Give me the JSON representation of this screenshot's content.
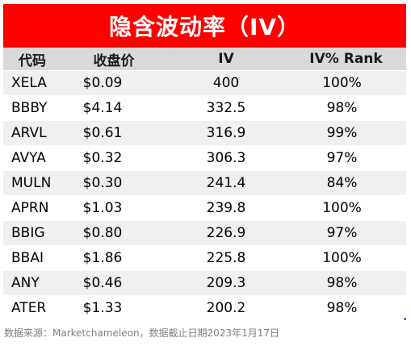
{
  "title": "隐含波动率（IV）",
  "colors": {
    "title_bg": "#ff0000",
    "header_bg": "#d9d9d9",
    "row_alt_bg": "#f0f0f0",
    "footnote_text": "#7f7f7f"
  },
  "table": {
    "headers": [
      "代码",
      "收盘价",
      "IV",
      "IV% Rank"
    ],
    "rows": [
      [
        "XELA",
        "$0.09",
        "400",
        "100%"
      ],
      [
        "BBBY",
        "$4.14",
        "332.5",
        "98%"
      ],
      [
        "ARVL",
        "$0.61",
        "316.9",
        "99%"
      ],
      [
        "AVYA",
        "$0.32",
        "306.3",
        "97%"
      ],
      [
        "MULN",
        "$0.30",
        "241.4",
        "84%"
      ],
      [
        "APRN",
        "$1.03",
        "239.8",
        "100%"
      ],
      [
        "BBIG",
        "$0.80",
        "226.9",
        "97%"
      ],
      [
        "BBAI",
        "$1.86",
        "225.8",
        "100%"
      ],
      [
        "ANY",
        "$0.46",
        "209.3",
        "98%"
      ],
      [
        "ATER",
        "$1.33",
        "200.2",
        "98%"
      ]
    ]
  },
  "footnote": "数据来源：Marketchameleon，数据截止日期2023年1月17日"
}
